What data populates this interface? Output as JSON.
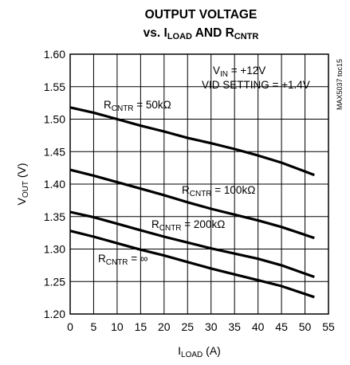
{
  "chart_data": {
    "type": "line",
    "title": {
      "line1": "OUTPUT VOLTAGE",
      "line2_prefix": "vs. I",
      "line2_sub1": "LOAD",
      "line2_mid": " AND R",
      "line2_sub2": "CNTR"
    },
    "xlabel": {
      "base": "I",
      "sub": "LOAD",
      "rest": " (A)"
    },
    "ylabel": {
      "base": "V",
      "sub": "OUT",
      "rest": " (V)"
    },
    "xlim": [
      0,
      55
    ],
    "ylim": [
      1.2,
      1.6
    ],
    "x_ticks": [
      "0",
      "5",
      "10",
      "15",
      "20",
      "25",
      "30",
      "35",
      "40",
      "45",
      "50",
      "55"
    ],
    "y_ticks": [
      "1.20",
      "1.25",
      "1.30",
      "1.35",
      "1.40",
      "1.45",
      "1.50",
      "1.55",
      "1.60"
    ],
    "grid": true,
    "annotations": {
      "vin": {
        "base": "V",
        "sub": "IN",
        "rest": " = +12V"
      },
      "vid": "VID SETTING = +1.4V",
      "code": "MAX5037 toc15"
    },
    "series": [
      {
        "name": {
          "base": "R",
          "sub": "CNTR",
          "rest": " = 50kΩ"
        },
        "x": [
          0,
          5,
          10,
          15,
          20,
          25,
          30,
          35,
          40,
          45,
          52
        ],
        "y": [
          1.518,
          1.51,
          1.5,
          1.49,
          1.481,
          1.471,
          1.463,
          1.454,
          1.444,
          1.433,
          1.414
        ]
      },
      {
        "name": {
          "base": "R",
          "sub": "CNTR",
          "rest": " = 100kΩ"
        },
        "x": [
          0,
          5,
          10,
          15,
          20,
          25,
          30,
          35,
          40,
          45,
          52
        ],
        "y": [
          1.422,
          1.413,
          1.403,
          1.393,
          1.383,
          1.372,
          1.362,
          1.353,
          1.344,
          1.334,
          1.317
        ]
      },
      {
        "name": {
          "base": "R",
          "sub": "CNTR",
          "rest": " = 200kΩ"
        },
        "x": [
          0,
          5,
          10,
          15,
          20,
          25,
          30,
          35,
          40,
          45,
          52
        ],
        "y": [
          1.357,
          1.349,
          1.339,
          1.329,
          1.319,
          1.31,
          1.301,
          1.293,
          1.285,
          1.275,
          1.257
        ]
      },
      {
        "name": {
          "base": "R",
          "sub": "CNTR",
          "rest": " = ∞"
        },
        "x": [
          0,
          5,
          10,
          15,
          20,
          25,
          30,
          35,
          40,
          45,
          52
        ],
        "y": [
          1.328,
          1.319,
          1.309,
          1.299,
          1.29,
          1.28,
          1.27,
          1.261,
          1.252,
          1.243,
          1.226
        ]
      }
    ]
  }
}
